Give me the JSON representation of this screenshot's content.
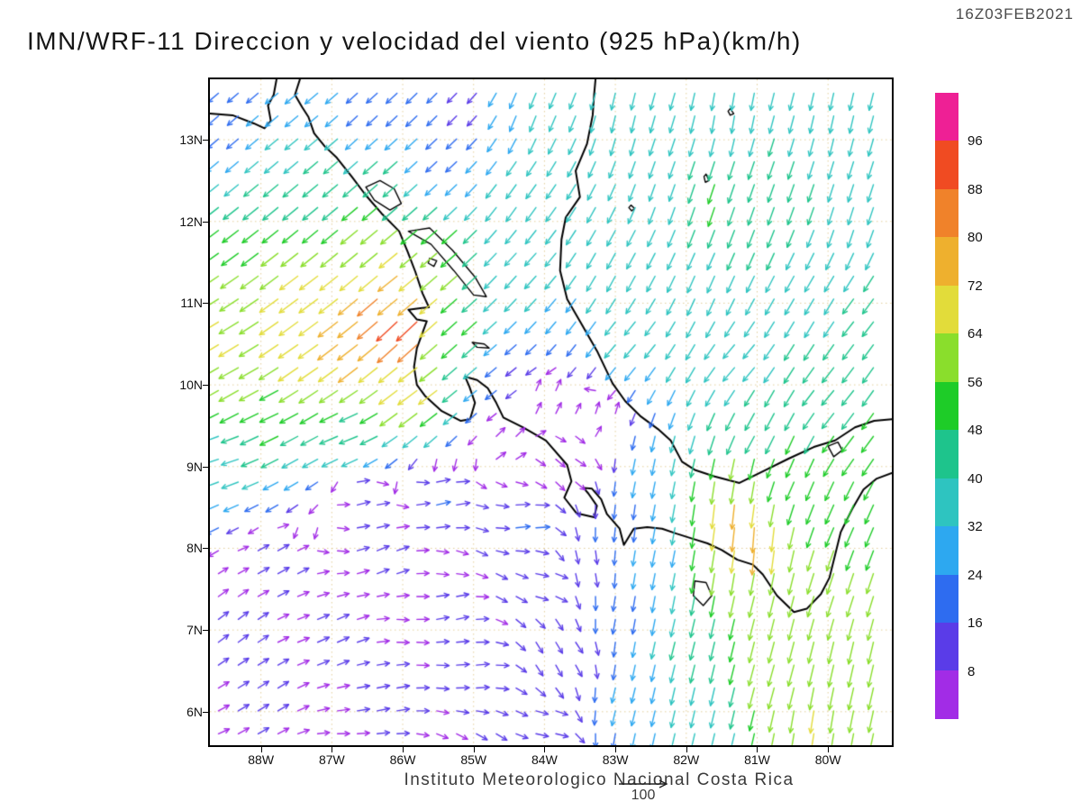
{
  "header": {
    "title": "IMN/WRF-11 Direccion y velocidad del viento (925 hPa)(km/h)",
    "datetime": "16Z03FEB2021"
  },
  "footer": {
    "credit": "Instituto Meteorologico Nacional Costa Rica",
    "reference_vector_label": "100"
  },
  "chart_data": {
    "type": "vector_field",
    "model": "IMN/WRF-11",
    "variable": "Direccion y velocidad del viento",
    "level": "925 hPa",
    "units": "km/h",
    "valid_time": "16Z03FEB2021",
    "extent": {
      "lon_min": -88.72,
      "lon_max": -79.1,
      "lat_min": 5.59,
      "lat_max": 13.74
    },
    "x_ticks": [
      {
        "label": "88W",
        "value": -88
      },
      {
        "label": "87W",
        "value": -87
      },
      {
        "label": "86W",
        "value": -86
      },
      {
        "label": "85W",
        "value": -85
      },
      {
        "label": "84W",
        "value": -84
      },
      {
        "label": "83W",
        "value": -83
      },
      {
        "label": "82W",
        "value": -82
      },
      {
        "label": "81W",
        "value": -81
      },
      {
        "label": "80W",
        "value": -80
      }
    ],
    "y_ticks": [
      {
        "label": "13N",
        "value": 13
      },
      {
        "label": "12N",
        "value": 12
      },
      {
        "label": "11N",
        "value": 11
      },
      {
        "label": "10N",
        "value": 10
      },
      {
        "label": "9N",
        "value": 9
      },
      {
        "label": "8N",
        "value": 8
      },
      {
        "label": "7N",
        "value": 7
      },
      {
        "label": "6N",
        "value": 6
      }
    ],
    "grid_step_deg": 0.28,
    "colorbar": {
      "levels": [
        8,
        16,
        24,
        32,
        40,
        48,
        56,
        64,
        72,
        80,
        88,
        96
      ],
      "colors": [
        "#a22ce6",
        "#5a3ce8",
        "#2e6cf0",
        "#2da8f0",
        "#2ec4c0",
        "#1ec48c",
        "#1ecc28",
        "#8ade2c",
        "#e2dc3a",
        "#eeb02e",
        "#f0822a",
        "#f04b22",
        "#ee2095"
      ]
    },
    "wind_sample_format": [
      "lat",
      "lon",
      "u_kmh",
      "v_kmh"
    ],
    "wind_samples": [
      [
        10.75,
        -85.95,
        -70,
        -66
      ],
      [
        10.9,
        -86.35,
        -64,
        -55
      ],
      [
        11.25,
        -86.05,
        -58,
        -46
      ],
      [
        10.55,
        -86.75,
        -62,
        -48
      ],
      [
        10.3,
        -87.35,
        -58,
        -40
      ],
      [
        10.5,
        -88.55,
        -56,
        -34
      ],
      [
        10.05,
        -88.3,
        -54,
        -30
      ],
      [
        9.65,
        -87.85,
        -46,
        -22
      ],
      [
        9.15,
        -88.45,
        -36,
        -12
      ],
      [
        9.4,
        -86.7,
        -44,
        -18
      ],
      [
        9.95,
        -85.75,
        -56,
        -42
      ],
      [
        11.0,
        -87.3,
        -54,
        -40
      ],
      [
        11.65,
        -86.6,
        -46,
        -38
      ],
      [
        12.2,
        -87.2,
        -36,
        -30
      ],
      [
        12.6,
        -86.3,
        -32,
        -28
      ],
      [
        11.45,
        -85.55,
        -44,
        -38
      ],
      [
        10.6,
        -85.15,
        -38,
        -34
      ],
      [
        10.15,
        -84.9,
        -26,
        -22
      ],
      [
        13.45,
        -88.45,
        -14,
        -12
      ],
      [
        13.35,
        -87.5,
        -24,
        -20
      ],
      [
        13.3,
        -86.4,
        -14,
        -13
      ],
      [
        13.35,
        -85.2,
        -9,
        -9
      ],
      [
        13.4,
        -84.2,
        -12,
        -30
      ],
      [
        13.4,
        -82.9,
        -8,
        -34
      ],
      [
        13.4,
        -81.4,
        -6,
        -36
      ],
      [
        13.4,
        -79.9,
        -8,
        -36
      ],
      [
        12.5,
        -82.3,
        -12,
        -34
      ],
      [
        12.45,
        -80.9,
        -14,
        -40
      ],
      [
        12.2,
        -79.7,
        -12,
        -38
      ],
      [
        11.55,
        -82.9,
        -18,
        -33
      ],
      [
        11.3,
        -81.7,
        -16,
        -36
      ],
      [
        11.0,
        -80.1,
        -20,
        -34
      ],
      [
        10.5,
        -82.75,
        -22,
        -26
      ],
      [
        10.3,
        -81.2,
        -24,
        -28
      ],
      [
        9.9,
        -79.9,
        -28,
        -34
      ],
      [
        12.3,
        -84.3,
        -20,
        -28
      ],
      [
        11.4,
        -84.35,
        -22,
        -24
      ],
      [
        12.75,
        -85.4,
        -16,
        -15
      ],
      [
        12.4,
        -81.65,
        -16,
        -48
      ],
      [
        9.8,
        -84.0,
        4,
        8
      ],
      [
        9.35,
        -84.55,
        6,
        6
      ],
      [
        9.0,
        -83.6,
        6,
        -4
      ],
      [
        9.6,
        -83.2,
        2,
        6
      ],
      [
        10.1,
        -84.55,
        -10,
        -8
      ],
      [
        8.6,
        -85.5,
        17,
        4
      ],
      [
        8.3,
        -84.3,
        18,
        2
      ],
      [
        8.6,
        -86.6,
        12,
        3
      ],
      [
        7.8,
        -87.8,
        9,
        5
      ],
      [
        7.9,
        -86.3,
        10,
        4
      ],
      [
        7.0,
        -88.45,
        8,
        6
      ],
      [
        6.9,
        -87.0,
        9,
        4
      ],
      [
        6.2,
        -88.0,
        8,
        5
      ],
      [
        6.2,
        -86.3,
        10,
        2
      ],
      [
        6.5,
        -85.0,
        11,
        1
      ],
      [
        5.8,
        -84.0,
        10,
        -2
      ],
      [
        7.2,
        -85.3,
        9,
        2
      ],
      [
        7.6,
        -84.0,
        11,
        -2
      ],
      [
        6.8,
        -83.6,
        6,
        -9
      ],
      [
        6.2,
        -82.8,
        -6,
        -24
      ],
      [
        7.2,
        -82.9,
        -4,
        -22
      ],
      [
        7.8,
        -83.5,
        3,
        -14
      ],
      [
        8.3,
        -82.9,
        -2,
        -18
      ],
      [
        5.8,
        -81.8,
        -8,
        -34
      ],
      [
        8.5,
        -81.4,
        -8,
        -74
      ],
      [
        8.2,
        -81.05,
        -6,
        -78
      ],
      [
        8.85,
        -81.15,
        -10,
        -58
      ],
      [
        7.85,
        -81.5,
        -10,
        -62
      ],
      [
        7.3,
        -81.0,
        -14,
        -56
      ],
      [
        6.5,
        -80.7,
        -16,
        -58
      ],
      [
        5.9,
        -80.2,
        -10,
        -64
      ],
      [
        6.6,
        -79.6,
        -14,
        -62
      ],
      [
        7.6,
        -79.9,
        -18,
        -55
      ],
      [
        8.4,
        -79.75,
        -22,
        -50
      ],
      [
        8.95,
        -80.5,
        -20,
        -45
      ],
      [
        9.35,
        -79.6,
        -30,
        -40
      ],
      [
        6.8,
        -82.0,
        -10,
        -40
      ],
      [
        7.9,
        -82.35,
        -6,
        -30
      ],
      [
        8.95,
        -82.45,
        -6,
        -30
      ],
      [
        9.5,
        -81.0,
        -22,
        -40
      ],
      [
        10.8,
        -79.6,
        -25,
        -32
      ]
    ],
    "coastlines": [
      [
        [
          -88.72,
          13.32
        ],
        [
          -88.4,
          13.3
        ],
        [
          -88.1,
          13.2
        ],
        [
          -87.95,
          13.14
        ],
        [
          -87.86,
          13.23
        ],
        [
          -87.9,
          13.42
        ],
        [
          -87.82,
          13.55
        ],
        [
          -87.78,
          13.74
        ]
      ],
      [
        [
          -87.45,
          13.74
        ],
        [
          -87.52,
          13.55
        ],
        [
          -87.42,
          13.4
        ],
        [
          -87.33,
          13.28
        ],
        [
          -87.25,
          13.08
        ],
        [
          -87.1,
          12.92
        ],
        [
          -86.93,
          12.78
        ],
        [
          -86.72,
          12.55
        ],
        [
          -86.52,
          12.32
        ],
        [
          -86.3,
          12.1
        ],
        [
          -86.05,
          11.88
        ],
        [
          -85.93,
          11.63
        ],
        [
          -85.82,
          11.38
        ],
        [
          -85.72,
          11.12
        ],
        [
          -85.63,
          10.95
        ],
        [
          -85.75,
          10.94
        ],
        [
          -85.92,
          10.92
        ],
        [
          -85.8,
          10.8
        ],
        [
          -85.66,
          10.78
        ],
        [
          -85.72,
          10.64
        ],
        [
          -85.8,
          10.45
        ],
        [
          -85.84,
          10.22
        ],
        [
          -85.8,
          10.0
        ],
        [
          -85.68,
          9.86
        ],
        [
          -85.45,
          9.68
        ],
        [
          -85.18,
          9.56
        ],
        [
          -85.05,
          9.58
        ],
        [
          -84.98,
          9.78
        ],
        [
          -85.06,
          9.98
        ],
        [
          -85.12,
          10.1
        ],
        [
          -84.95,
          10.06
        ],
        [
          -84.8,
          9.96
        ],
        [
          -84.68,
          9.78
        ],
        [
          -84.58,
          9.6
        ],
        [
          -84.3,
          9.48
        ],
        [
          -83.98,
          9.32
        ],
        [
          -83.68,
          9.02
        ],
        [
          -83.62,
          8.82
        ],
        [
          -83.72,
          8.62
        ],
        [
          -83.55,
          8.43
        ],
        [
          -83.3,
          8.38
        ],
        [
          -83.26,
          8.52
        ],
        [
          -83.38,
          8.67
        ],
        [
          -83.45,
          8.74
        ],
        [
          -83.33,
          8.73
        ],
        [
          -83.2,
          8.6
        ],
        [
          -83.12,
          8.42
        ],
        [
          -82.94,
          8.24
        ],
        [
          -82.88,
          8.04
        ],
        [
          -82.74,
          8.24
        ],
        [
          -82.55,
          8.26
        ],
        [
          -82.34,
          8.24
        ],
        [
          -82.14,
          8.18
        ],
        [
          -81.92,
          8.12
        ],
        [
          -81.7,
          8.06
        ],
        [
          -81.5,
          7.98
        ],
        [
          -81.28,
          7.86
        ],
        [
          -81.06,
          7.8
        ],
        [
          -80.92,
          7.68
        ],
        [
          -80.72,
          7.42
        ],
        [
          -80.48,
          7.22
        ],
        [
          -80.3,
          7.26
        ],
        [
          -80.1,
          7.44
        ],
        [
          -79.98,
          7.64
        ],
        [
          -79.9,
          7.92
        ],
        [
          -79.82,
          8.2
        ],
        [
          -79.66,
          8.48
        ],
        [
          -79.5,
          8.72
        ],
        [
          -79.32,
          8.85
        ],
        [
          -79.1,
          8.92
        ]
      ],
      [
        [
          -79.1,
          9.58
        ],
        [
          -79.35,
          9.56
        ],
        [
          -79.62,
          9.48
        ],
        [
          -79.9,
          9.32
        ],
        [
          -80.2,
          9.24
        ],
        [
          -80.55,
          9.1
        ],
        [
          -80.9,
          8.95
        ],
        [
          -81.25,
          8.8
        ],
        [
          -81.6,
          8.88
        ],
        [
          -81.88,
          8.96
        ],
        [
          -82.06,
          9.06
        ],
        [
          -82.22,
          9.32
        ],
        [
          -82.4,
          9.46
        ],
        [
          -82.65,
          9.62
        ],
        [
          -82.86,
          9.8
        ],
        [
          -83.04,
          10.02
        ],
        [
          -83.25,
          10.4
        ],
        [
          -83.5,
          10.78
        ],
        [
          -83.68,
          11.05
        ],
        [
          -83.78,
          11.4
        ],
        [
          -83.76,
          11.78
        ],
        [
          -83.7,
          12.05
        ],
        [
          -83.5,
          12.3
        ],
        [
          -83.56,
          12.62
        ],
        [
          -83.4,
          12.95
        ],
        [
          -83.32,
          13.3
        ],
        [
          -83.3,
          13.55
        ],
        [
          -83.28,
          13.74
        ]
      ]
    ],
    "lakes": [
      [
        [
          -86.52,
          12.42
        ],
        [
          -86.32,
          12.5
        ],
        [
          -86.12,
          12.4
        ],
        [
          -86.02,
          12.22
        ],
        [
          -86.18,
          12.14
        ],
        [
          -86.4,
          12.26
        ],
        [
          -86.52,
          12.42
        ]
      ],
      [
        [
          -85.92,
          11.88
        ],
        [
          -85.6,
          11.72
        ],
        [
          -85.28,
          11.4
        ],
        [
          -85.0,
          11.1
        ],
        [
          -84.82,
          11.08
        ],
        [
          -84.98,
          11.32
        ],
        [
          -85.3,
          11.65
        ],
        [
          -85.62,
          11.92
        ],
        [
          -85.92,
          11.88
        ]
      ],
      [
        [
          -85.62,
          11.55
        ],
        [
          -85.52,
          11.52
        ],
        [
          -85.56,
          11.45
        ],
        [
          -85.64,
          11.49
        ],
        [
          -85.62,
          11.55
        ]
      ],
      [
        [
          -85.02,
          10.52
        ],
        [
          -84.85,
          10.5
        ],
        [
          -84.78,
          10.45
        ],
        [
          -84.95,
          10.46
        ],
        [
          -85.02,
          10.52
        ]
      ],
      [
        [
          -80.0,
          9.25
        ],
        [
          -79.86,
          9.3
        ],
        [
          -79.8,
          9.2
        ],
        [
          -79.92,
          9.12
        ],
        [
          -80.0,
          9.25
        ]
      ]
    ],
    "islands": [
      [
        [
          -81.88,
          7.6
        ],
        [
          -81.72,
          7.58
        ],
        [
          -81.64,
          7.42
        ],
        [
          -81.76,
          7.3
        ],
        [
          -81.9,
          7.42
        ],
        [
          -81.88,
          7.6
        ]
      ],
      [
        [
          -81.72,
          12.58
        ],
        [
          -81.68,
          12.5
        ],
        [
          -81.73,
          12.48
        ],
        [
          -81.75,
          12.55
        ],
        [
          -81.72,
          12.58
        ]
      ],
      [
        [
          -81.38,
          13.38
        ],
        [
          -81.33,
          13.32
        ],
        [
          -81.38,
          13.3
        ],
        [
          -81.41,
          13.35
        ],
        [
          -81.38,
          13.38
        ]
      ],
      [
        [
          -82.78,
          12.2
        ],
        [
          -82.73,
          12.16
        ],
        [
          -82.77,
          12.13
        ],
        [
          -82.81,
          12.17
        ],
        [
          -82.78,
          12.2
        ]
      ]
    ]
  }
}
